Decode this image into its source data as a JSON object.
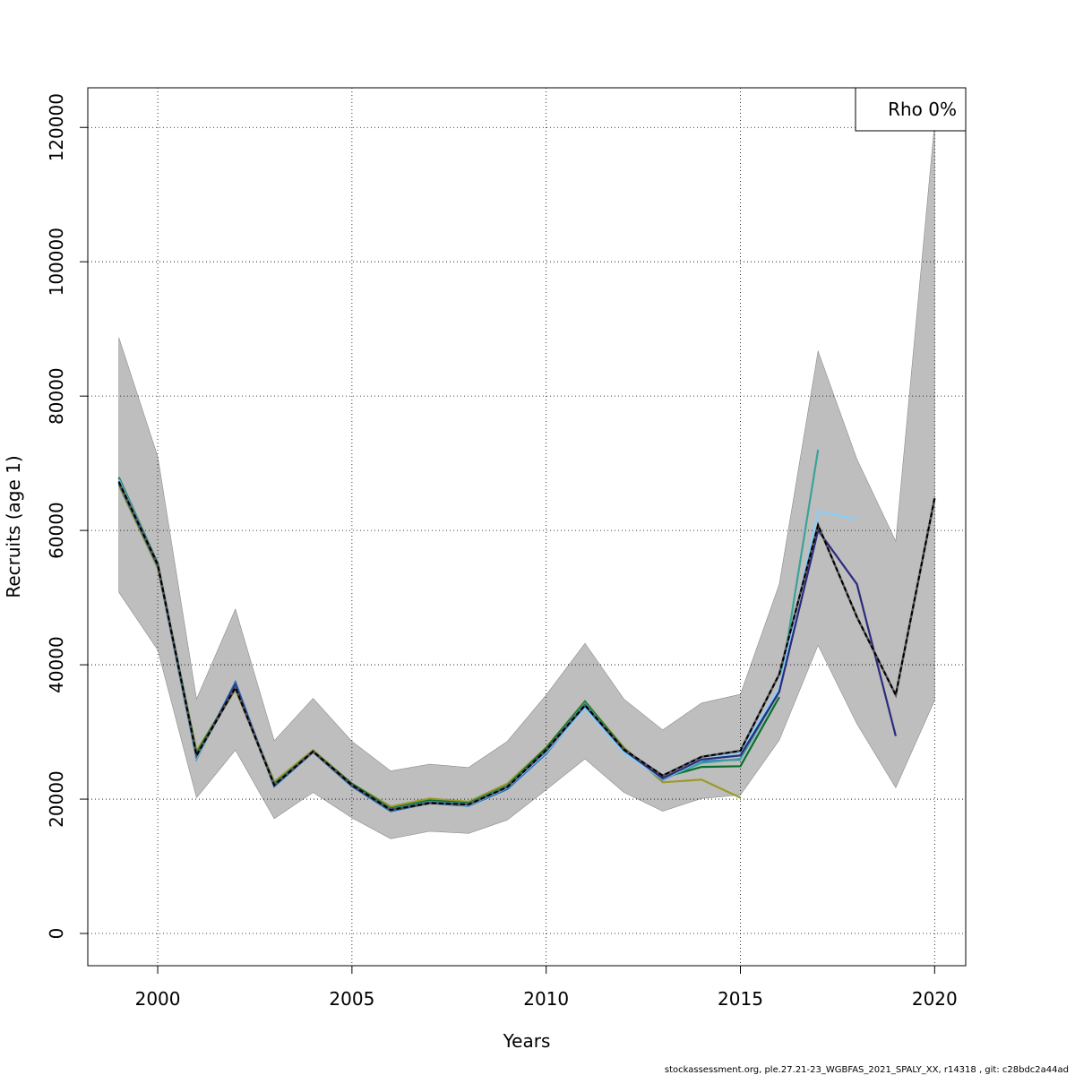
{
  "chart_data": {
    "type": "line",
    "xlabel": "Years",
    "ylabel": "Recruits (age 1)",
    "xlim": [
      1998.2,
      2020.8
    ],
    "ylim": [
      -4800,
      125900
    ],
    "x_ticks": [
      2000,
      2005,
      2010,
      2015,
      2020
    ],
    "y_ticks": [
      0,
      20000,
      40000,
      60000,
      80000,
      100000,
      120000
    ],
    "grid": true,
    "legend": {
      "placement": "top-right",
      "text": "Rho 0%"
    },
    "confidence_band": {
      "color": "#bebebe",
      "x": [
        1999,
        2000,
        2001,
        2002,
        2003,
        2004,
        2005,
        2006,
        2007,
        2008,
        2009,
        2010,
        2011,
        2012,
        2013,
        2014,
        2015,
        2016,
        2017,
        2018,
        2019,
        2020
      ],
      "upper": [
        88700,
        71000,
        34900,
        48300,
        28700,
        35000,
        28600,
        24200,
        25200,
        24700,
        28600,
        35500,
        43200,
        34900,
        30300,
        34300,
        35600,
        52000,
        86700,
        70600,
        58400,
        120600
      ],
      "lower": [
        50800,
        42200,
        20200,
        27300,
        17100,
        21000,
        17200,
        14100,
        15200,
        14900,
        16900,
        21400,
        26000,
        21000,
        18200,
        20100,
        20600,
        28800,
        42900,
        31200,
        21700,
        34700
      ]
    },
    "series": [
      {
        "color": "#000000",
        "dashed": true,
        "x": [
          1999,
          2000,
          2001,
          2002,
          2003,
          2004,
          2005,
          2006,
          2007,
          2008,
          2009,
          2010,
          2011,
          2012,
          2013,
          2014,
          2015,
          2016,
          2017,
          2018,
          2019,
          2020
        ],
        "values": [
          67200,
          54900,
          26500,
          36600,
          22100,
          27100,
          22100,
          18400,
          19400,
          19200,
          21800,
          27300,
          34000,
          27400,
          23500,
          26300,
          27200,
          38600,
          60800,
          47100,
          35500,
          64800
        ]
      },
      {
        "color": "#2a2a7f",
        "x": [
          1999,
          2000,
          2001,
          2002,
          2003,
          2004,
          2005,
          2006,
          2007,
          2008,
          2009,
          2010,
          2011,
          2012,
          2013,
          2014,
          2015,
          2016,
          2017,
          2018,
          2019
        ],
        "values": [
          67300,
          55000,
          26400,
          37000,
          22100,
          27100,
          22000,
          18400,
          19500,
          19200,
          21800,
          27200,
          33900,
          27300,
          23100,
          25900,
          26500,
          36000,
          60000,
          52000,
          29400
        ]
      },
      {
        "color": "#87cefa",
        "x": [
          1999,
          2000,
          2001,
          2002,
          2003,
          2004,
          2005,
          2006,
          2007,
          2008,
          2009,
          2010,
          2011,
          2012,
          2013,
          2014,
          2015,
          2016,
          2017,
          2018
        ],
        "values": [
          67500,
          55000,
          26200,
          37000,
          22100,
          27100,
          22000,
          18400,
          19500,
          19100,
          21700,
          27000,
          33500,
          26900,
          23000,
          25800,
          27000,
          36500,
          62900,
          61600
        ]
      },
      {
        "color": "#3aa39a",
        "x": [
          1999,
          2000,
          2001,
          2002,
          2003,
          2004,
          2005,
          2006,
          2007,
          2008,
          2009,
          2010,
          2011,
          2012,
          2013,
          2014,
          2015,
          2016,
          2017
        ],
        "values": [
          67700,
          55000,
          26100,
          37000,
          22200,
          27100,
          22100,
          18500,
          19600,
          19300,
          21900,
          27300,
          34300,
          27300,
          23000,
          25400,
          26000,
          36000,
          72000
        ]
      },
      {
        "color": "#0a6e2c",
        "x": [
          1999,
          2000,
          2001,
          2002,
          2003,
          2004,
          2005,
          2006,
          2007,
          2008,
          2009,
          2010,
          2011,
          2012,
          2013,
          2014,
          2015,
          2016
        ],
        "values": [
          67900,
          55100,
          26800,
          36800,
          22300,
          27100,
          22300,
          18600,
          19800,
          19400,
          22000,
          27600,
          34500,
          27500,
          23200,
          24800,
          24900,
          35200
        ]
      },
      {
        "color": "#1565c0",
        "x": [
          1999,
          2000,
          2001,
          2002,
          2003,
          2004,
          2005,
          2006,
          2007,
          2008,
          2009,
          2010,
          2011,
          2012,
          2013,
          2014,
          2015
        ],
        "values": [
          67000,
          54700,
          26000,
          37400,
          21900,
          27000,
          21900,
          18200,
          19400,
          19000,
          21500,
          26800,
          33800,
          27100,
          22900,
          25600,
          25900
        ]
      },
      {
        "color": "#9a9a2a",
        "x": [
          1999,
          2000,
          2001,
          2002,
          2003,
          2004,
          2005,
          2006,
          2007,
          2008,
          2009,
          2010,
          2011,
          2012,
          2013,
          2014,
          2015
        ],
        "values": [
          66700,
          54400,
          27200,
          36300,
          22600,
          27300,
          22300,
          18900,
          20100,
          19600,
          22300,
          27700,
          34600,
          27700,
          22500,
          22900,
          20200
        ]
      }
    ]
  },
  "footer": "stockassessment.org, ple.27.21-23_WGBFAS_2021_SPALY_XX, r14318 , git: c28bdc2a44ad"
}
